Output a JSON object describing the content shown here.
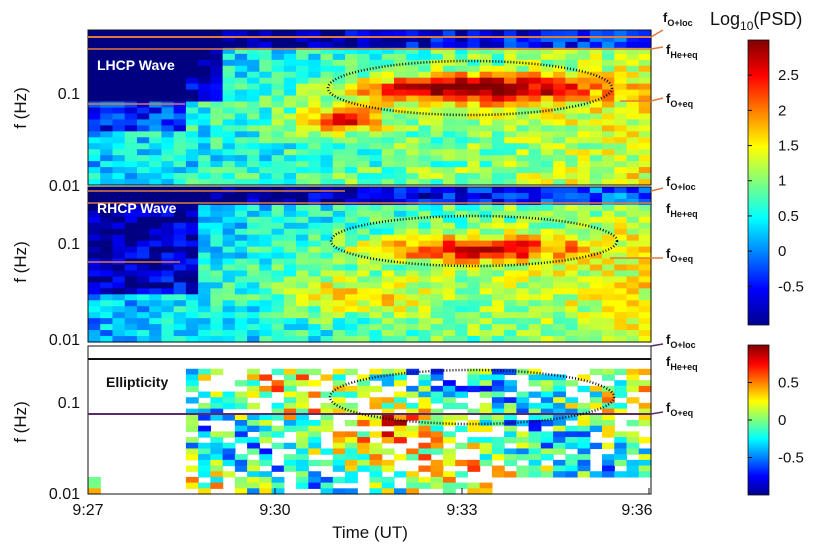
{
  "chart_data": [
    {
      "type": "heatmap",
      "panel_label": "LHCP Wave",
      "ylabel": "f (Hz)",
      "yscale": "log",
      "ylim": [
        0.01,
        0.4
      ],
      "yticks": [
        "0.1",
        "0.01"
      ],
      "colorbar_title": "Log10(PSD)",
      "colorbar_title_main": "Log",
      "colorbar_title_sub": "10",
      "colorbar_title_rest": "(PSD)",
      "colorbar_range": [
        -1,
        3
      ],
      "colorbar_ticks": [
        "2.5",
        "2",
        "1.5",
        "1",
        "0.5",
        "0",
        "-0.5"
      ],
      "features": [
        {
          "label": "high power region",
          "x_range": [
            "9:31",
            "9:35"
          ],
          "y_range": [
            0.06,
            0.15
          ],
          "value": 2.6
        }
      ]
    },
    {
      "type": "heatmap",
      "panel_label": "RHCP Wave",
      "ylabel": "f (Hz)",
      "yscale": "log",
      "ylim": [
        0.01,
        0.4
      ],
      "yticks": [
        "0.1",
        "0.01"
      ],
      "features": [
        {
          "label": "high power region",
          "x_range": [
            "9:31",
            "9:35"
          ],
          "y_range": [
            0.07,
            0.14
          ],
          "value": 2.2
        }
      ]
    },
    {
      "type": "heatmap",
      "panel_label": "Ellipticity",
      "ylabel": "f (Hz)",
      "yscale": "log",
      "ylim": [
        0.01,
        0.4
      ],
      "yticks": [
        "0.1",
        "0.01"
      ],
      "xlabel": "Time (UT)",
      "xticks": [
        "9:27",
        "9:30",
        "9:33",
        "9:36"
      ],
      "colorbar_range": [
        -1,
        1
      ],
      "colorbar_ticks": [
        "0.5",
        "0",
        "-0.5"
      ]
    }
  ],
  "reference_lines": [
    {
      "main": "f",
      "sub": "O+loc"
    },
    {
      "main": "f",
      "sub": "He+eq"
    },
    {
      "main": "f",
      "sub": "O+eq"
    }
  ]
}
